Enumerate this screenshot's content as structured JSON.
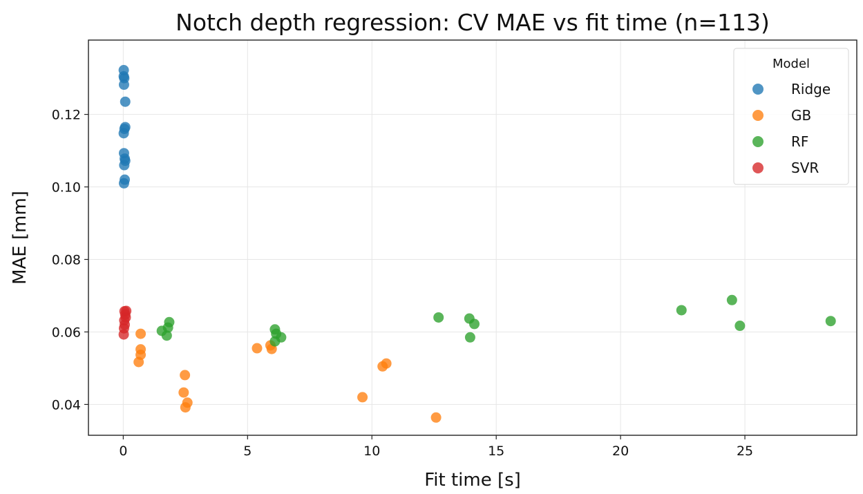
{
  "chart_data": {
    "type": "scatter",
    "title": "Notch depth regression: CV MAE vs fit time (n=113)",
    "xlabel": "Fit time [s]",
    "ylabel": "MAE [mm]",
    "xlim": [
      -1.4,
      29.5
    ],
    "ylim": [
      0.0315,
      0.1405
    ],
    "xticks": [
      0,
      5,
      10,
      15,
      20,
      25
    ],
    "xtick_labels": [
      "0",
      "5",
      "10",
      "15",
      "20",
      "25"
    ],
    "yticks": [
      0.04,
      0.06,
      0.08,
      0.1,
      0.12
    ],
    "ytick_labels": [
      "0.04",
      "0.06",
      "0.08",
      "0.10",
      "0.12"
    ],
    "grid": true,
    "legend": {
      "title": "Model",
      "placement": "top-right"
    },
    "series": [
      {
        "name": "Ridge",
        "color": "#1f77b4",
        "points": [
          [
            0.02,
            0.1322
          ],
          [
            0.02,
            0.1305
          ],
          [
            0.04,
            0.13
          ],
          [
            0.03,
            0.1282
          ],
          [
            0.08,
            0.1235
          ],
          [
            0.08,
            0.1165
          ],
          [
            0.05,
            0.116
          ],
          [
            0.02,
            0.1148
          ],
          [
            0.03,
            0.1093
          ],
          [
            0.06,
            0.1078
          ],
          [
            0.08,
            0.1072
          ],
          [
            0.04,
            0.106
          ],
          [
            0.06,
            0.102
          ],
          [
            0.03,
            0.101
          ]
        ]
      },
      {
        "name": "GB",
        "color": "#ff7f0e",
        "points": [
          [
            0.7,
            0.0595
          ],
          [
            0.7,
            0.0552
          ],
          [
            0.7,
            0.0537
          ],
          [
            0.62,
            0.0517
          ],
          [
            2.48,
            0.0481
          ],
          [
            2.43,
            0.0433
          ],
          [
            2.58,
            0.0405
          ],
          [
            2.5,
            0.0392
          ],
          [
            5.38,
            0.0555
          ],
          [
            5.92,
            0.0563
          ],
          [
            5.97,
            0.0553
          ],
          [
            9.62,
            0.042
          ],
          [
            10.43,
            0.0505
          ],
          [
            10.58,
            0.0513
          ],
          [
            12.58,
            0.0364
          ]
        ]
      },
      {
        "name": "RF",
        "color": "#2ca02c",
        "points": [
          [
            1.55,
            0.0603
          ],
          [
            1.8,
            0.0612
          ],
          [
            1.85,
            0.0627
          ],
          [
            1.75,
            0.059
          ],
          [
            6.1,
            0.0607
          ],
          [
            6.15,
            0.0595
          ],
          [
            6.35,
            0.0585
          ],
          [
            6.1,
            0.0574
          ],
          [
            12.68,
            0.064
          ],
          [
            13.92,
            0.0637
          ],
          [
            14.12,
            0.0622
          ],
          [
            13.95,
            0.0585
          ],
          [
            22.45,
            0.066
          ],
          [
            24.48,
            0.0688
          ],
          [
            24.8,
            0.0617
          ],
          [
            28.45,
            0.063
          ]
        ]
      },
      {
        "name": "SVR",
        "color": "#d62728",
        "points": [
          [
            0.05,
            0.0657
          ],
          [
            0.12,
            0.0658
          ],
          [
            0.08,
            0.0648
          ],
          [
            0.1,
            0.064
          ],
          [
            0.04,
            0.0632
          ],
          [
            0.06,
            0.062
          ],
          [
            0.03,
            0.061
          ],
          [
            0.02,
            0.0593
          ]
        ]
      }
    ]
  }
}
